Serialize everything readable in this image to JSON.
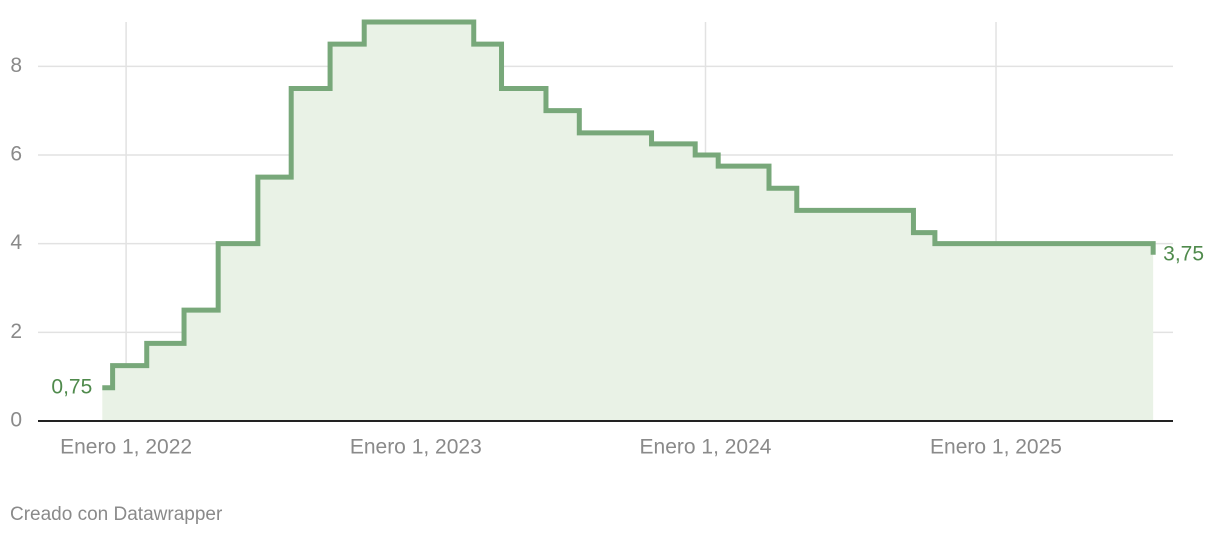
{
  "chart_data": {
    "type": "step-line",
    "x": [
      "2021-12-02",
      "2021-12-15",
      "2022-01-27",
      "2022-03-15",
      "2022-04-27",
      "2022-06-16",
      "2022-07-28",
      "2022-09-15",
      "2022-10-28",
      "2023-03-15",
      "2023-04-19",
      "2023-06-14",
      "2023-07-26",
      "2023-10-25",
      "2023-12-19",
      "2024-01-17",
      "2024-03-21",
      "2024-04-25",
      "2024-09-19",
      "2024-10-16",
      "2025-07-18"
    ],
    "values": [
      0.75,
      1.25,
      1.75,
      2.5,
      4,
      5.5,
      7.5,
      8.5,
      9,
      8.5,
      7.5,
      7,
      6.5,
      6.25,
      6,
      5.75,
      5.25,
      4.75,
      4.25,
      4,
      3.75
    ],
    "value_labels": [
      "0,75",
      null,
      null,
      null,
      null,
      null,
      null,
      null,
      null,
      null,
      null,
      null,
      null,
      null,
      null,
      null,
      null,
      null,
      null,
      null,
      "3,75"
    ],
    "color": "#78a87a",
    "area_color": "#e9f2e6",
    "xlim": [
      "2021-09-12",
      "2025-08-12"
    ],
    "xticks": [
      {
        "value": "2022-01-01",
        "label": "Enero 1, 2022"
      },
      {
        "value": "2023-01-01",
        "label": "Enero 1, 2023"
      },
      {
        "value": "2024-01-01",
        "label": "Enero 1, 2024"
      },
      {
        "value": "2025-01-01",
        "label": "Enero 1, 2025"
      }
    ],
    "ylim": [
      0,
      9
    ],
    "yticks": [
      0,
      2,
      4,
      6,
      8
    ],
    "grid": true,
    "footer": "Creado con Datawrapper"
  }
}
